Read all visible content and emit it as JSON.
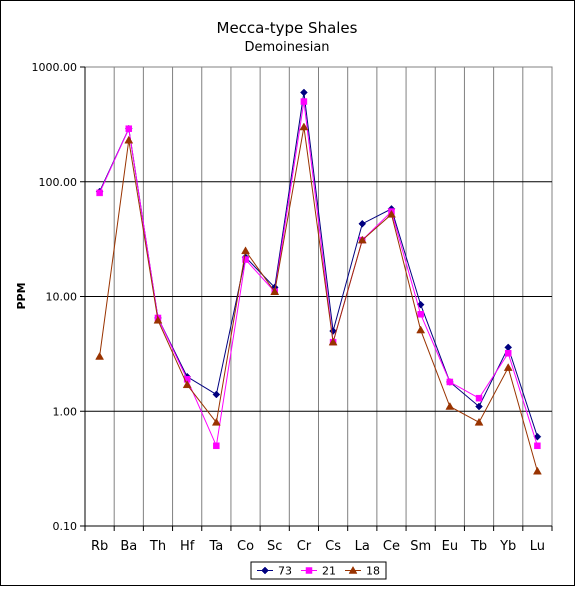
{
  "chart_data": {
    "type": "line",
    "title": "Mecca-type Shales",
    "subtitle": "Demoinesian",
    "ylabel": "PPM",
    "xlabel": "",
    "yscale": "log",
    "ylim": [
      0.1,
      1000
    ],
    "yticks": [
      0.1,
      1,
      10,
      100,
      1000
    ],
    "ytick_labels": [
      "0.10",
      "1.00",
      "10.00",
      "100.00",
      "1000.00"
    ],
    "grid": true,
    "legend": "bottom",
    "categories": [
      "Rb",
      "Ba",
      "Th",
      "Hf",
      "Ta",
      "Co",
      "Sc",
      "Cr",
      "Cs",
      "La",
      "Ce",
      "Sm",
      "Eu",
      "Tb",
      "Yb",
      "Lu"
    ],
    "series": [
      {
        "name": "73",
        "color": "#000080",
        "marker": "diamond",
        "values": [
          82,
          290,
          6.5,
          2.0,
          1.4,
          22,
          12,
          600,
          5.0,
          43,
          58,
          8.5,
          1.8,
          1.1,
          3.6,
          0.6
        ]
      },
      {
        "name": "21",
        "color": "#ff00ff",
        "marker": "square",
        "values": [
          80,
          290,
          6.5,
          1.9,
          0.5,
          21,
          11,
          500,
          4.0,
          31,
          55,
          7.0,
          1.8,
          1.3,
          3.2,
          0.5
        ]
      },
      {
        "name": "18",
        "color": "#993300",
        "marker": "triangle",
        "values": [
          3.0,
          230,
          6.2,
          1.7,
          0.8,
          25,
          11,
          300,
          4.0,
          31,
          52,
          5.1,
          1.1,
          0.8,
          2.4,
          0.3
        ]
      }
    ]
  }
}
